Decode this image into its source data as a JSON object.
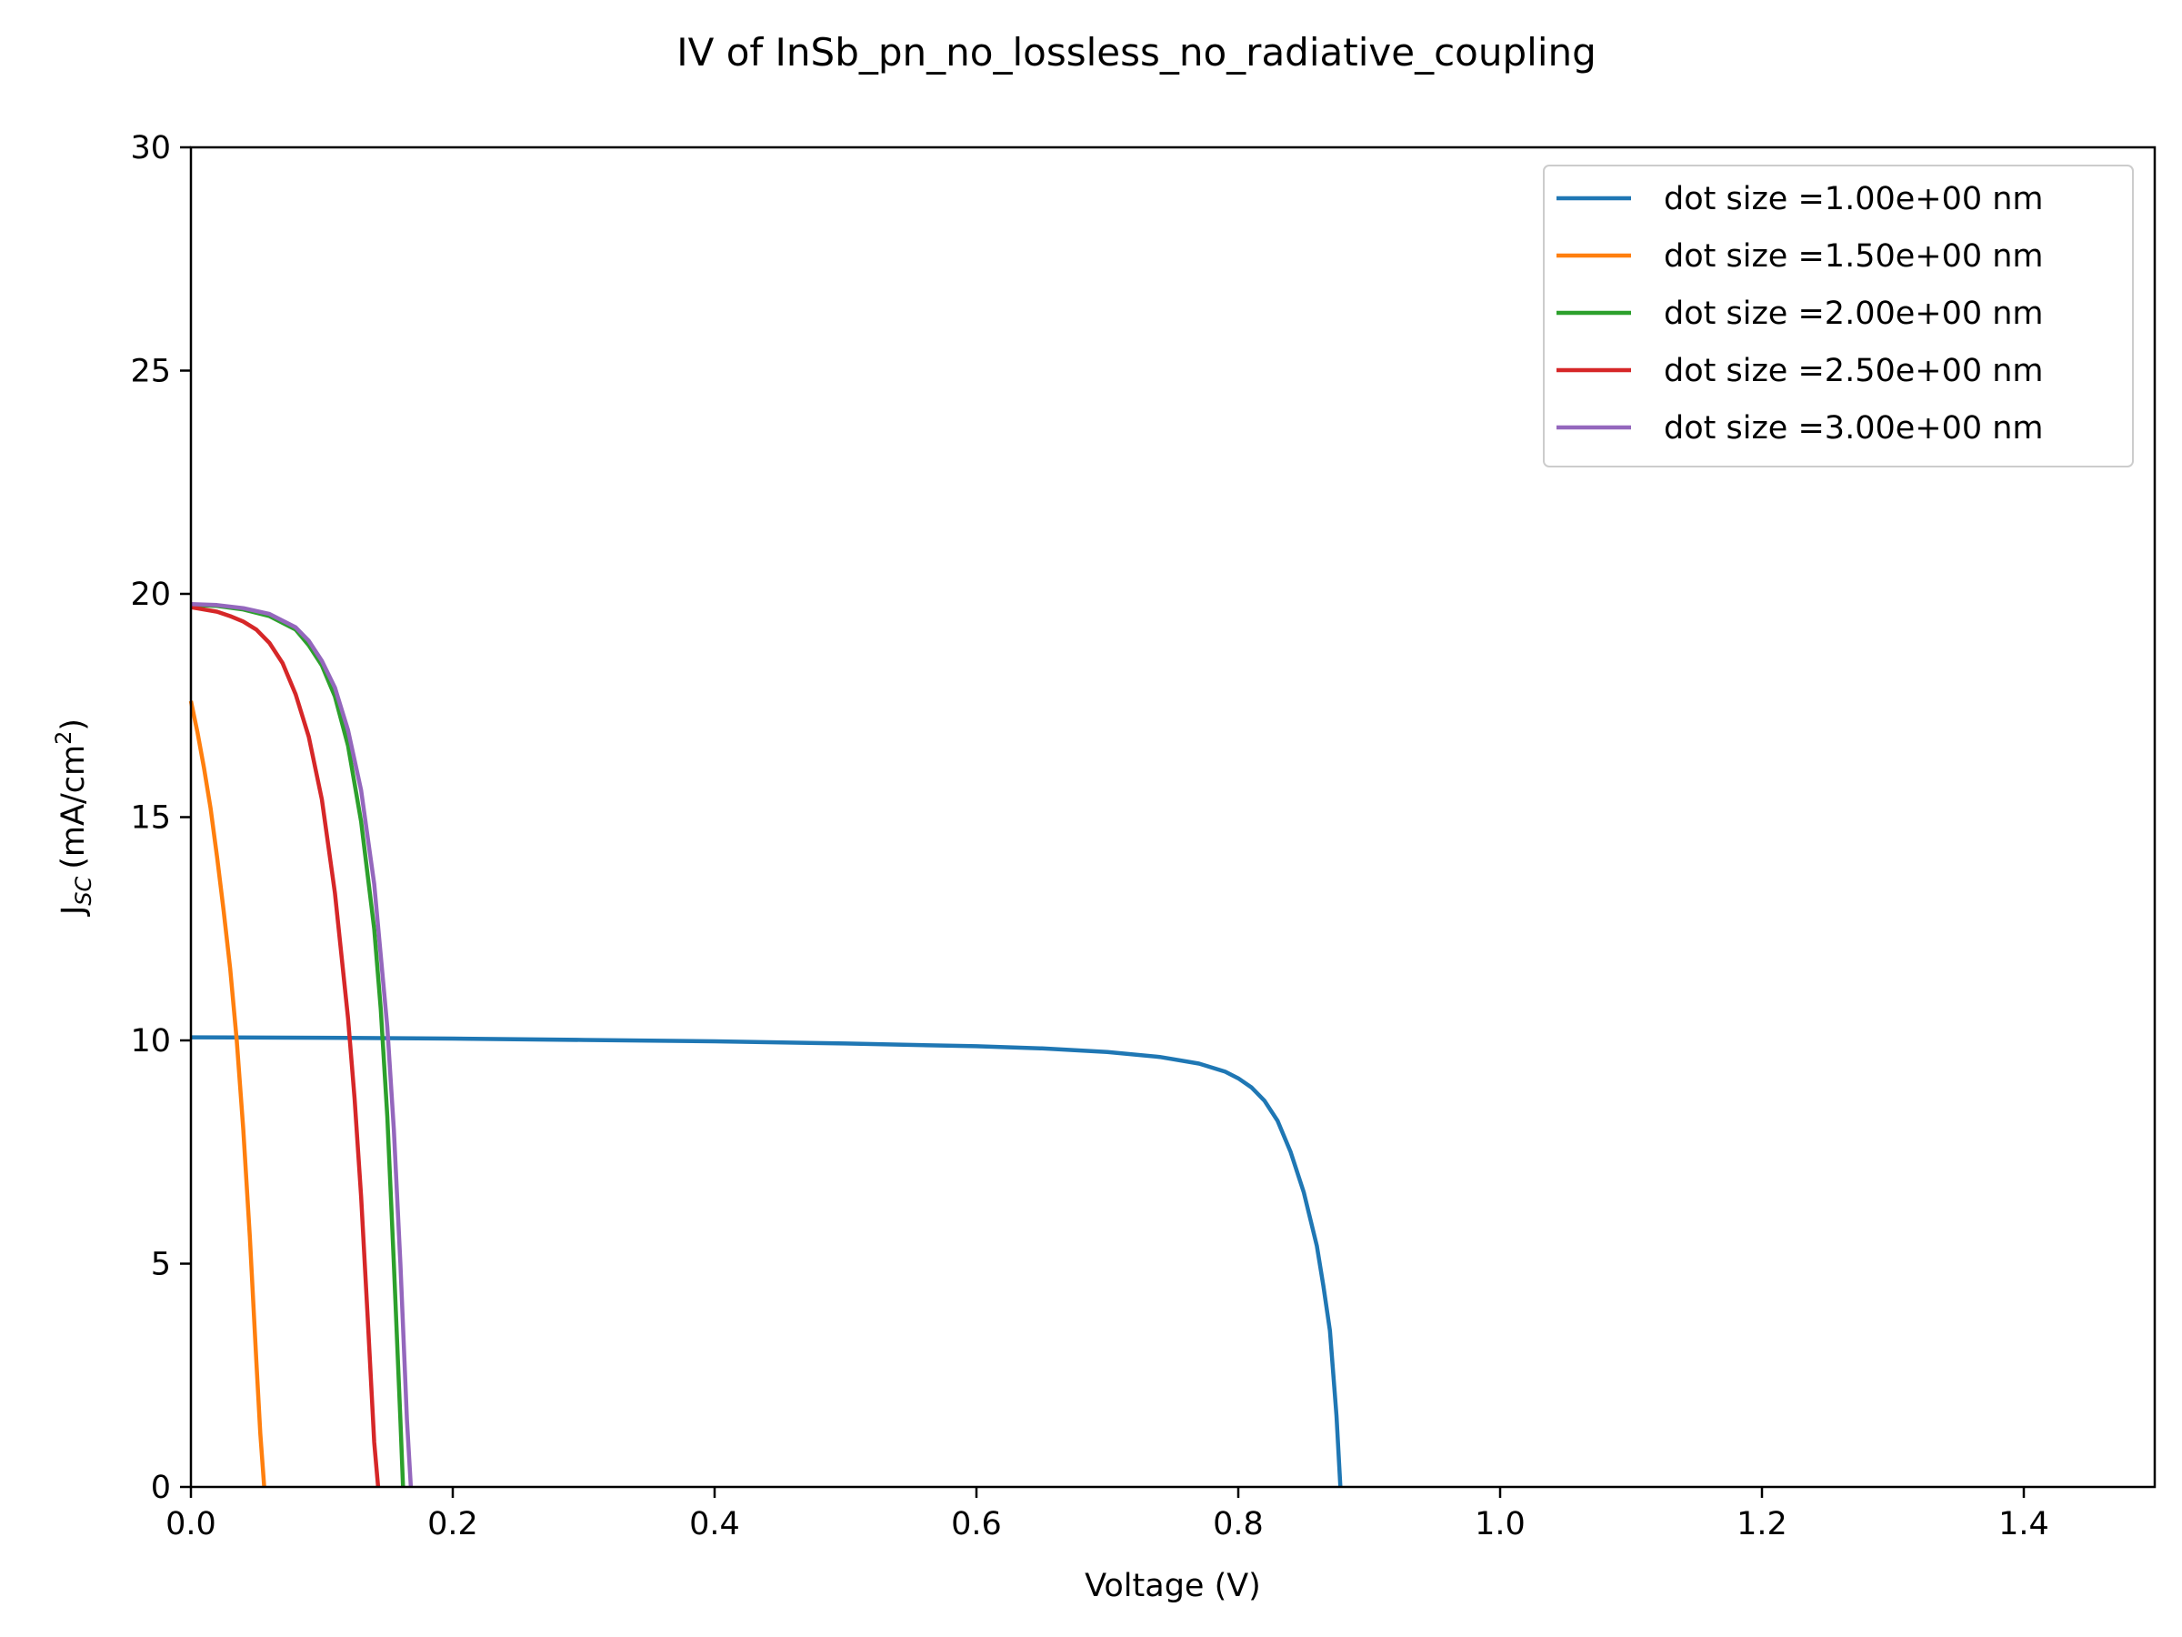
{
  "chart_data": {
    "type": "line",
    "title": "IV of InSb_pn_no_lossless_no_radiative_coupling",
    "xlabel": "Voltage (V)",
    "ylabel": {
      "main": "J",
      "sub": "SC",
      "unit_prefix": "(mA/cm",
      "unit_sup": "2",
      "unit_suffix": ")"
    },
    "xlim": [
      0,
      1.5
    ],
    "ylim": [
      0,
      30
    ],
    "xticks": [
      0,
      0.2,
      0.4,
      0.6,
      0.8,
      1.0,
      1.2,
      1.4
    ],
    "xtick_labels": [
      "0.0",
      "0.2",
      "0.4",
      "0.6",
      "0.8",
      "1.0",
      "1.2",
      "1.4"
    ],
    "yticks": [
      0,
      5,
      10,
      15,
      20,
      25,
      30
    ],
    "ytick_labels": [
      "0",
      "5",
      "10",
      "15",
      "20",
      "25",
      "30"
    ],
    "grid": false,
    "legend_position": "top-right",
    "series": [
      {
        "name": "dot size =1.00e+00 nm",
        "color": "#1f77b4",
        "x": [
          0,
          0.1,
          0.2,
          0.3,
          0.4,
          0.5,
          0.6,
          0.65,
          0.7,
          0.74,
          0.77,
          0.79,
          0.8,
          0.81,
          0.82,
          0.83,
          0.84,
          0.85,
          0.86,
          0.865,
          0.87,
          0.875,
          0.878
        ],
        "y": [
          10.07,
          10.06,
          10.04,
          10.01,
          9.98,
          9.93,
          9.87,
          9.82,
          9.74,
          9.63,
          9.48,
          9.3,
          9.15,
          8.95,
          8.65,
          8.2,
          7.5,
          6.6,
          5.4,
          4.5,
          3.5,
          1.6,
          0
        ]
      },
      {
        "name": "dot size =1.50e+00 nm",
        "color": "#ff7f0e",
        "x": [
          0,
          0.005,
          0.01,
          0.015,
          0.02,
          0.025,
          0.03,
          0.035,
          0.04,
          0.045,
          0.05,
          0.053,
          0.056
        ],
        "y": [
          17.6,
          16.9,
          16.1,
          15.2,
          14.1,
          12.9,
          11.6,
          10.0,
          8.0,
          5.6,
          2.8,
          1.2,
          0
        ]
      },
      {
        "name": "dot size =2.00e+00 nm",
        "color": "#2ca02c",
        "x": [
          0,
          0.02,
          0.04,
          0.06,
          0.08,
          0.09,
          0.1,
          0.11,
          0.12,
          0.13,
          0.14,
          0.145,
          0.15,
          0.155,
          0.16,
          0.162
        ],
        "y": [
          19.75,
          19.73,
          19.65,
          19.5,
          19.2,
          18.85,
          18.4,
          17.7,
          16.6,
          14.9,
          12.5,
          10.7,
          8.3,
          5.0,
          1.5,
          0
        ]
      },
      {
        "name": "dot size =2.50e+00 nm",
        "color": "#d62728",
        "x": [
          0,
          0.01,
          0.02,
          0.03,
          0.04,
          0.05,
          0.06,
          0.07,
          0.08,
          0.09,
          0.1,
          0.11,
          0.12,
          0.125,
          0.13,
          0.135,
          0.14,
          0.143
        ],
        "y": [
          19.7,
          19.65,
          19.6,
          19.5,
          19.38,
          19.2,
          18.9,
          18.45,
          17.75,
          16.8,
          15.4,
          13.3,
          10.5,
          8.7,
          6.5,
          3.8,
          1.0,
          0
        ]
      },
      {
        "name": "dot size =3.00e+00 nm",
        "color": "#9467bd",
        "x": [
          0,
          0.02,
          0.04,
          0.06,
          0.08,
          0.09,
          0.1,
          0.11,
          0.12,
          0.13,
          0.14,
          0.15,
          0.155,
          0.16,
          0.165,
          0.168
        ],
        "y": [
          19.77,
          19.75,
          19.68,
          19.55,
          19.25,
          18.95,
          18.5,
          17.9,
          16.95,
          15.6,
          13.5,
          10.3,
          8.0,
          5.0,
          1.5,
          0
        ]
      }
    ]
  },
  "colors": {
    "axes": "#000000",
    "legend_border": "#cccccc",
    "background": "#ffffff"
  }
}
